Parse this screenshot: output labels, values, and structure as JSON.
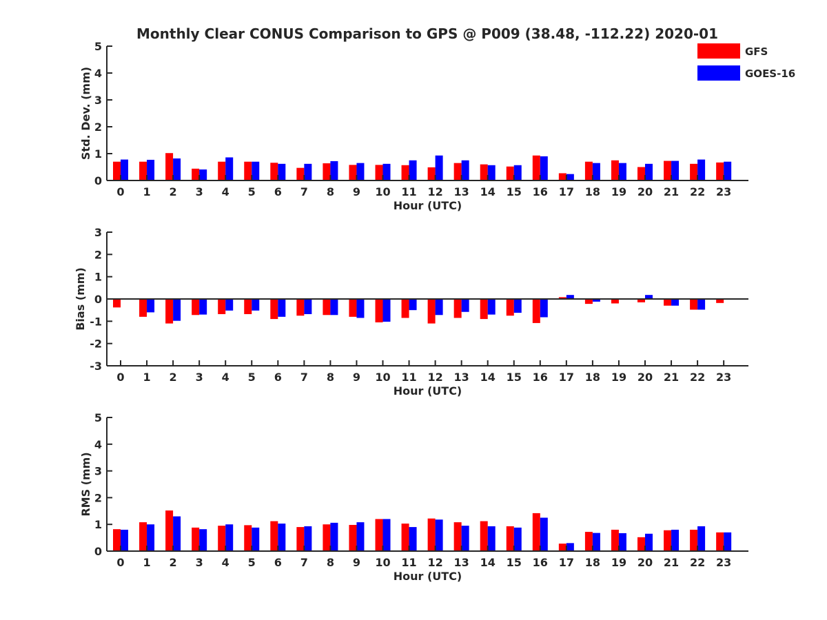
{
  "title": "Monthly Clear CONUS Comparison to GPS @ P009 (38.48, -112.22) 2020-01",
  "legend": [
    {
      "name": "GFS",
      "color": "#ff0000"
    },
    {
      "name": "GOES-16",
      "color": "#0000ff"
    }
  ],
  "chart_data": [
    {
      "type": "bar",
      "ylabel": "Std. Dev. (mm)",
      "xlabel": "Hour (UTC)",
      "ylim": [
        0,
        5
      ],
      "yticks": [
        0,
        1,
        2,
        3,
        4,
        5
      ],
      "categories": [
        "0",
        "1",
        "2",
        "3",
        "4",
        "5",
        "6",
        "7",
        "8",
        "9",
        "10",
        "11",
        "12",
        "13",
        "14",
        "15",
        "16",
        "17",
        "18",
        "19",
        "20",
        "21",
        "22",
        "23"
      ],
      "series": [
        {
          "name": "GFS",
          "color": "#ff0000",
          "values": [
            0.7,
            0.7,
            1.02,
            0.44,
            0.7,
            0.7,
            0.66,
            0.47,
            0.64,
            0.58,
            0.58,
            0.57,
            0.49,
            0.65,
            0.6,
            0.52,
            0.93,
            0.27,
            0.7,
            0.75,
            0.5,
            0.73,
            0.62,
            0.67
          ]
        },
        {
          "name": "GOES-16",
          "color": "#0000ff",
          "values": [
            0.78,
            0.77,
            0.82,
            0.41,
            0.86,
            0.7,
            0.62,
            0.62,
            0.72,
            0.65,
            0.62,
            0.75,
            0.93,
            0.75,
            0.57,
            0.57,
            0.9,
            0.24,
            0.65,
            0.65,
            0.62,
            0.73,
            0.78,
            0.7
          ]
        }
      ]
    },
    {
      "type": "bar",
      "ylabel": "Bias (mm)",
      "xlabel": "Hour (UTC)",
      "ylim": [
        -3,
        3
      ],
      "yticks": [
        -3,
        -2,
        -1,
        0,
        1,
        2,
        3
      ],
      "zero_line": true,
      "categories": [
        "0",
        "1",
        "2",
        "3",
        "4",
        "5",
        "6",
        "7",
        "8",
        "9",
        "10",
        "11",
        "12",
        "13",
        "14",
        "15",
        "16",
        "17",
        "18",
        "19",
        "20",
        "21",
        "22",
        "23"
      ],
      "series": [
        {
          "name": "GFS",
          "color": "#ff0000",
          "values": [
            -0.38,
            -0.8,
            -1.1,
            -0.72,
            -0.68,
            -0.68,
            -0.9,
            -0.75,
            -0.72,
            -0.8,
            -1.05,
            -0.85,
            -1.1,
            -0.85,
            -0.9,
            -0.75,
            -1.08,
            0.08,
            -0.22,
            -0.2,
            -0.15,
            -0.3,
            -0.48,
            -0.18
          ]
        },
        {
          "name": "GOES-16",
          "color": "#0000ff",
          "values": [
            0.0,
            -0.6,
            -0.98,
            -0.7,
            -0.52,
            -0.52,
            -0.8,
            -0.68,
            -0.72,
            -0.85,
            -1.02,
            -0.5,
            -0.72,
            -0.58,
            -0.7,
            -0.62,
            -0.82,
            0.18,
            -0.12,
            0.02,
            0.18,
            -0.3,
            -0.48,
            0.02
          ]
        }
      ]
    },
    {
      "type": "bar",
      "ylabel": "RMS (mm)",
      "xlabel": "Hour (UTC)",
      "ylim": [
        0,
        5
      ],
      "yticks": [
        0,
        1,
        2,
        3,
        4,
        5
      ],
      "categories": [
        "0",
        "1",
        "2",
        "3",
        "4",
        "5",
        "6",
        "7",
        "8",
        "9",
        "10",
        "11",
        "12",
        "13",
        "14",
        "15",
        "16",
        "17",
        "18",
        "19",
        "20",
        "21",
        "22",
        "23"
      ],
      "series": [
        {
          "name": "GFS",
          "color": "#ff0000",
          "values": [
            0.82,
            1.08,
            1.52,
            0.88,
            0.95,
            0.97,
            1.12,
            0.9,
            1.0,
            0.98,
            1.2,
            1.03,
            1.22,
            1.08,
            1.12,
            0.93,
            1.42,
            0.28,
            0.72,
            0.8,
            0.52,
            0.78,
            0.8,
            0.7
          ]
        },
        {
          "name": "GOES-16",
          "color": "#0000ff",
          "values": [
            0.8,
            1.0,
            1.3,
            0.82,
            1.0,
            0.88,
            1.03,
            0.93,
            1.06,
            1.08,
            1.2,
            0.9,
            1.18,
            0.95,
            0.93,
            0.88,
            1.25,
            0.3,
            0.68,
            0.67,
            0.65,
            0.8,
            0.93,
            0.7
          ]
        }
      ]
    }
  ]
}
